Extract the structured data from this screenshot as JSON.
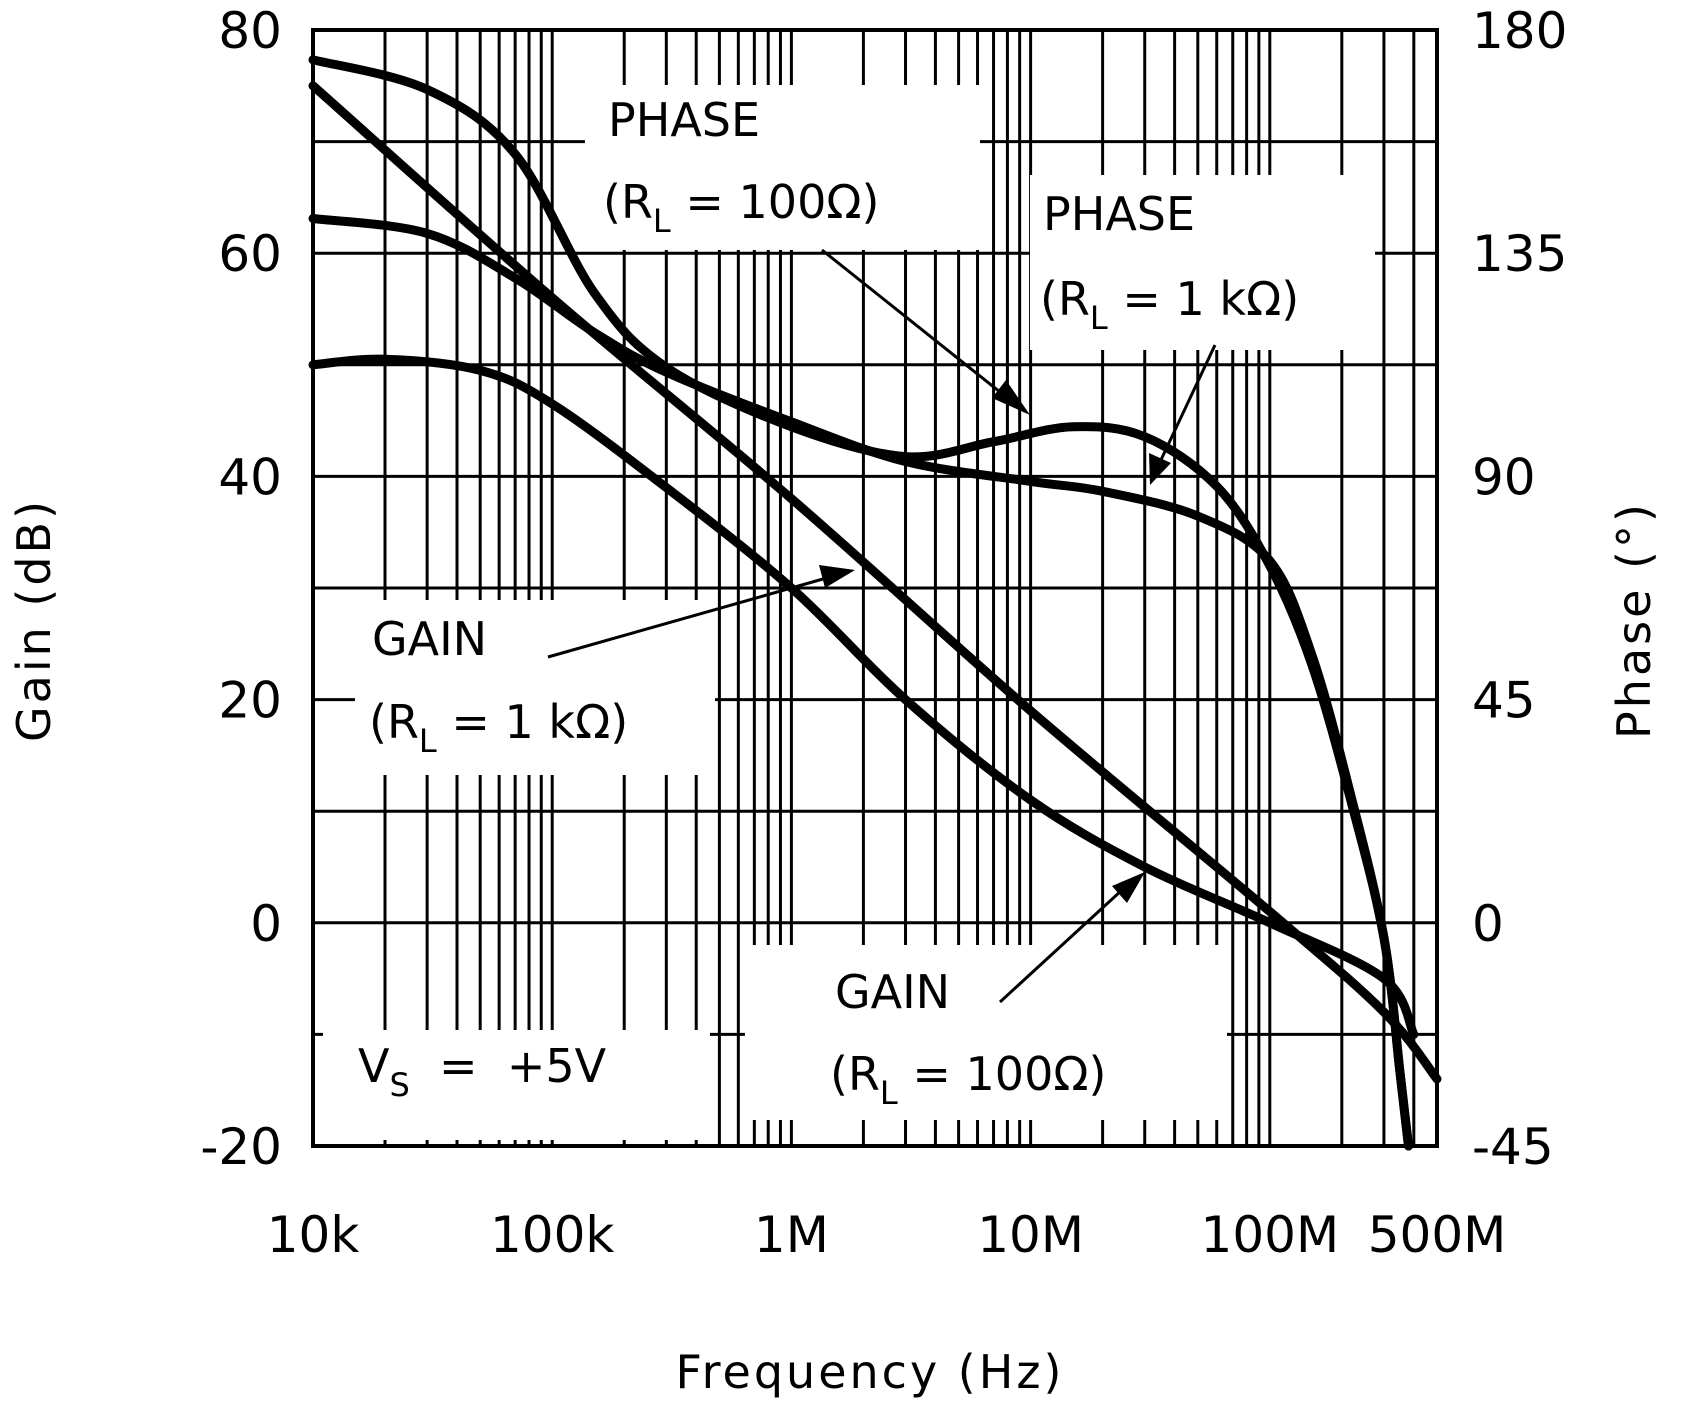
{
  "chart_data": {
    "type": "line",
    "title": "",
    "xlabel": "Frequency (Hz)",
    "ylabel": "Gain (dB)",
    "ylabel_right": "Phase (°)",
    "x_scale": "log",
    "xlim": [
      10000,
      500000000
    ],
    "ylim": [
      -20,
      80
    ],
    "ylim_right": [
      -45,
      180
    ],
    "grid": true,
    "x_ticks": [
      {
        "value": 10000,
        "label": "10k"
      },
      {
        "value": 100000,
        "label": "100k"
      },
      {
        "value": 1000000,
        "label": "1M"
      },
      {
        "value": 10000000,
        "label": "10M"
      },
      {
        "value": 100000000,
        "label": "100M"
      },
      {
        "value": 500000000,
        "label": "500M"
      }
    ],
    "y_ticks": [
      {
        "value": 80,
        "label": "80"
      },
      {
        "value": 60,
        "label": "60"
      },
      {
        "value": 40,
        "label": "40"
      },
      {
        "value": 20,
        "label": "20"
      },
      {
        "value": 0,
        "label": "0"
      },
      {
        "value": -20,
        "label": "-20"
      }
    ],
    "y_ticks_right": [
      {
        "value": 180,
        "label": "180"
      },
      {
        "value": 135,
        "label": "135"
      },
      {
        "value": 90,
        "label": "90"
      },
      {
        "value": 45,
        "label": "45"
      },
      {
        "value": 0,
        "label": "0"
      },
      {
        "value": -45,
        "label": "-45"
      }
    ],
    "series": [
      {
        "name": "PHASE (RL = 100Ω)",
        "axis": "right",
        "x": [
          10000,
          30000,
          70000,
          150000,
          300000,
          1000000,
          3000000,
          7000000,
          15000000,
          30000000,
          60000000,
          100000000,
          150000000,
          220000000,
          300000000,
          350000000,
          380000000
        ],
        "y": [
          174,
          168,
          155,
          127,
          112,
          100,
          94,
          97,
          100,
          98,
          88,
          72,
          52,
          24,
          -3,
          -30,
          -45
        ]
      },
      {
        "name": "PHASE (RL = 1 kΩ)",
        "axis": "right",
        "x": [
          10000,
          30000,
          70000,
          150000,
          300000,
          1000000,
          3000000,
          10000000,
          20000000,
          50000000,
          100000000,
          150000000,
          220000000,
          300000000,
          350000000,
          380000000
        ],
        "y": [
          142,
          139,
          130,
          119,
          111,
          101,
          93,
          89,
          87,
          82,
          73,
          54,
          25,
          -3,
          -30,
          -45
        ]
      },
      {
        "name": "GAIN (RL = 1 kΩ)",
        "axis": "left",
        "x": [
          10000,
          100000,
          1000000,
          10000000,
          100000000,
          300000000,
          500000000
        ],
        "y": [
          75,
          56,
          38,
          19,
          1,
          -8,
          -14
        ]
      },
      {
        "name": "GAIN (RL = 100Ω)",
        "axis": "left",
        "x": [
          10000,
          20000,
          50000,
          100000,
          300000,
          1000000,
          3000000,
          10000000,
          30000000,
          100000000,
          300000000,
          400000000
        ],
        "y": [
          50,
          50.5,
          49.5,
          46.5,
          39,
          30,
          20,
          11,
          5,
          0,
          -5,
          -10
        ]
      }
    ],
    "annotations": [
      {
        "line1": "PHASE",
        "line2_prefix": "(R",
        "line2_sub": "L",
        "line2_suffix": " = 100Ω)"
      },
      {
        "line1": "PHASE",
        "line2_prefix": "(R",
        "line2_sub": "L",
        "line2_suffix": " = 1 kΩ)"
      },
      {
        "line1": "GAIN",
        "line2_prefix": "(R",
        "line2_sub": "L",
        "line2_suffix": " = 1 kΩ)"
      },
      {
        "line1": "GAIN",
        "line2_prefix": "(R",
        "line2_sub": "L",
        "line2_suffix": " = 100Ω)"
      },
      {
        "line1_prefix": "V",
        "line1_sub": "S",
        "line1_suffix": "  =  +5V"
      }
    ]
  }
}
